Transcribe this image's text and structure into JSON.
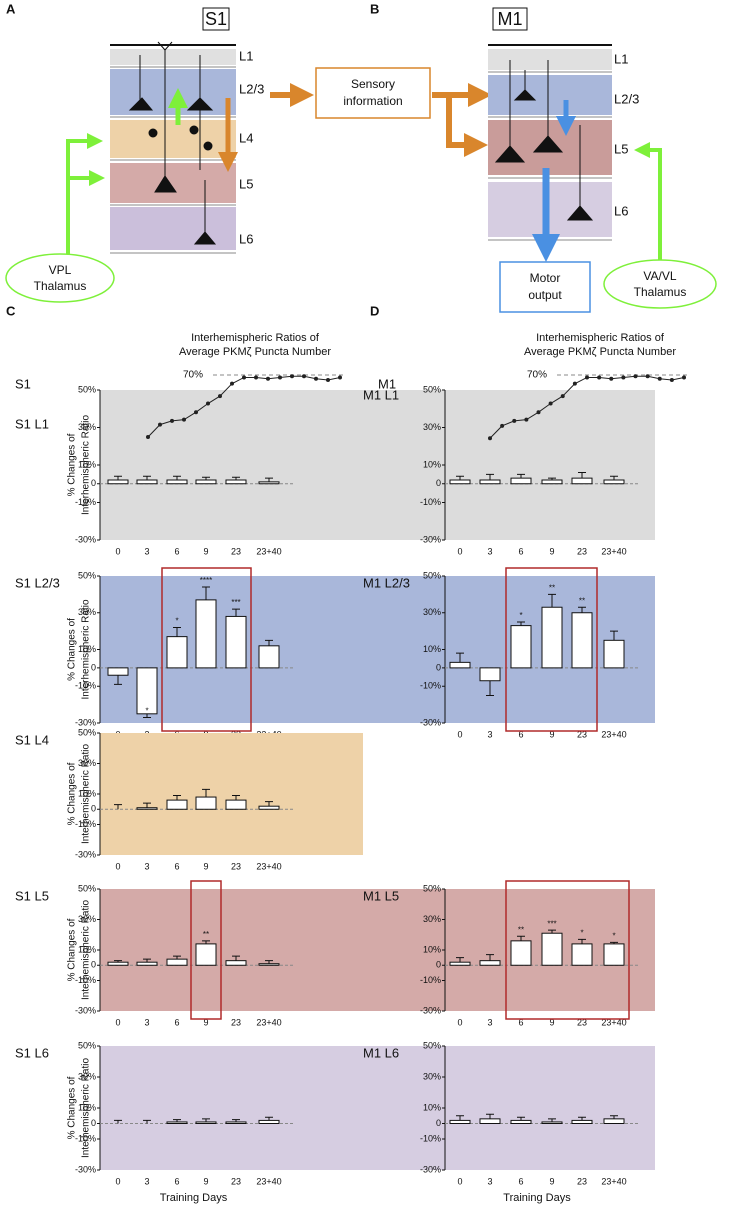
{
  "diagrams": {
    "A": {
      "letter": "A",
      "title": "S1",
      "layers": [
        "L1",
        "L2/3",
        "L4",
        "L5",
        "L6"
      ],
      "relay": [
        "Sensory",
        "information"
      ],
      "thalamus": [
        "VPL",
        "Thalamus"
      ]
    },
    "B": {
      "letter": "B",
      "title": "M1",
      "layers": [
        "L1",
        "L2/3",
        "L5",
        "L6"
      ],
      "output": [
        "Motor",
        "output"
      ],
      "thalamus": [
        "VA/VL",
        "Thalamus"
      ]
    }
  },
  "panels": {
    "C": {
      "letter": "C",
      "title": [
        "Interhemispheric Ratios of",
        "Average PKMζ Puncta Number"
      ],
      "area": "S1"
    },
    "D": {
      "letter": "D",
      "title": [
        "Interhemispheric Ratios of",
        "Average PKMζ Puncta Number"
      ],
      "area": "M1"
    }
  },
  "chart_data": [
    {
      "type": "bar",
      "label": "S1 L1",
      "background": "#dcdcdc",
      "categories": [
        "0",
        "3",
        "6",
        "9",
        "23",
        "23+40"
      ],
      "values": [
        2,
        2,
        2,
        2,
        2,
        1
      ],
      "errors": [
        2,
        2,
        2,
        1.5,
        1.5,
        2
      ],
      "ylim": [
        -30,
        50
      ],
      "yticks": [
        {
          "value": 50,
          "label": "50%"
        },
        {
          "value": 30,
          "label": "30%"
        },
        {
          "value": 10,
          "label": "10%"
        },
        0,
        {
          "value": -10,
          "label": "-10%"
        },
        {
          "value": -30,
          "label": "-30%"
        }
      ],
      "ylabel": [
        "% Changes of",
        "Interhemispheric Ratio"
      ]
    },
    {
      "type": "bar",
      "label": "S1 L2/3",
      "background": "#a9b7da",
      "categories": [
        "0",
        "3",
        "6",
        "9",
        "23",
        "23+40"
      ],
      "values": [
        -4,
        -25,
        17,
        37,
        28,
        12
      ],
      "errors": [
        5,
        2,
        5,
        7,
        4,
        3
      ],
      "significance": [
        null,
        "*",
        "*",
        "****",
        "***",
        null
      ],
      "highlight": [
        2,
        4
      ],
      "ylim": [
        -30,
        50
      ],
      "yticks": [
        {
          "value": 50,
          "label": "50%"
        },
        {
          "value": 30,
          "label": "30%"
        },
        {
          "value": 10,
          "label": "10%"
        },
        0,
        {
          "value": -10,
          "label": "-10%"
        },
        {
          "value": -30,
          "label": "-30%"
        }
      ],
      "ylabel": [
        "% Changes of",
        "Interhemispheric Ratio"
      ]
    },
    {
      "type": "bar",
      "label": "S1 L4",
      "background": "#eed2a8",
      "categories": [
        "0",
        "3",
        "6",
        "9",
        "23",
        "23+40"
      ],
      "values": [
        0,
        1,
        6,
        8,
        6,
        2
      ],
      "errors": [
        3,
        3,
        3,
        5,
        3,
        3
      ],
      "ylim": [
        -30,
        50
      ],
      "yticks": [
        {
          "value": 50,
          "label": "50%"
        },
        {
          "value": 30,
          "label": "30%"
        },
        {
          "value": 10,
          "label": "10%"
        },
        0,
        {
          "value": -10,
          "label": "-10%"
        },
        {
          "value": -30,
          "label": "-30%"
        }
      ],
      "ylabel": [
        "% Changes of",
        "Interhemispheric Ratio"
      ]
    },
    {
      "type": "bar",
      "label": "S1 L5",
      "background": "#d4aaa8",
      "categories": [
        "0",
        "3",
        "6",
        "9",
        "23",
        "23+40"
      ],
      "values": [
        2,
        2,
        4,
        14,
        3,
        1
      ],
      "errors": [
        1,
        2,
        2,
        2,
        3,
        2
      ],
      "significance": [
        null,
        null,
        null,
        "**",
        null,
        null
      ],
      "highlight": [
        3,
        3
      ],
      "ylim": [
        -30,
        50
      ],
      "yticks": [
        {
          "value": 50,
          "label": "50%"
        },
        {
          "value": 30,
          "label": "30%"
        },
        {
          "value": 10,
          "label": "10%"
        },
        0,
        {
          "value": -10,
          "label": "-10%"
        },
        {
          "value": -30,
          "label": "-30%"
        }
      ],
      "ylabel": [
        "% Changes of",
        "Interhemispheric Ratio"
      ]
    },
    {
      "type": "bar",
      "label": "S1 L6",
      "background": "#d6cde1",
      "categories": [
        "0",
        "3",
        "6",
        "9",
        "23",
        "23+40"
      ],
      "values": [
        0,
        0,
        1,
        1,
        1,
        2
      ],
      "errors": [
        2,
        2,
        1.5,
        2,
        1.5,
        2
      ],
      "ylim": [
        -30,
        50
      ],
      "yticks": [
        {
          "value": 50,
          "label": "50%"
        },
        {
          "value": 30,
          "label": "30%"
        },
        {
          "value": 10,
          "label": "10%"
        },
        0,
        {
          "value": -10,
          "label": "-10%"
        },
        {
          "value": -30,
          "label": "-30%"
        }
      ],
      "ylabel": [
        "% Changes of",
        "Interhemispheric Ratio"
      ],
      "xlabel": "Training Days"
    },
    {
      "type": "bar",
      "label": "M1 L1",
      "background": "#dcdcdc",
      "categories": [
        "0",
        "3",
        "6",
        "9",
        "23",
        "23+40"
      ],
      "values": [
        2,
        2,
        3,
        2,
        3,
        2
      ],
      "errors": [
        2,
        3,
        2,
        1,
        3,
        2
      ],
      "ylim": [
        -30,
        50
      ],
      "yticks": [
        {
          "value": 50,
          "label": "50%"
        },
        {
          "value": 30,
          "label": "30%"
        },
        {
          "value": 10,
          "label": "10%"
        },
        0,
        {
          "value": -10,
          "label": "-10%"
        },
        {
          "value": -30,
          "label": "-30%"
        }
      ]
    },
    {
      "type": "bar",
      "label": "M1 L2/3",
      "background": "#a9b7da",
      "categories": [
        "0",
        "3",
        "6",
        "9",
        "23",
        "23+40"
      ],
      "values": [
        3,
        -7,
        23,
        33,
        30,
        15
      ],
      "errors": [
        5,
        8,
        2,
        7,
        3,
        5
      ],
      "significance": [
        null,
        null,
        "*",
        "**",
        "**",
        null
      ],
      "highlight": [
        2,
        4
      ],
      "ylim": [
        -30,
        50
      ],
      "yticks": [
        {
          "value": 50,
          "label": "50%"
        },
        {
          "value": 30,
          "label": "30%"
        },
        {
          "value": 10,
          "label": "10%"
        },
        0,
        {
          "value": -10,
          "label": "-10%"
        },
        {
          "value": -30,
          "label": "-30%"
        }
      ]
    },
    {
      "type": "bar",
      "label": "M1 L5",
      "background": "#d4aaa8",
      "categories": [
        "0",
        "3",
        "6",
        "9",
        "23",
        "23+40"
      ],
      "values": [
        2,
        3,
        16,
        21,
        14,
        14
      ],
      "errors": [
        3,
        4,
        3,
        2,
        3,
        1
      ],
      "significance": [
        null,
        null,
        "**",
        "***",
        "*",
        "*"
      ],
      "highlight": [
        2,
        5
      ],
      "ylim": [
        -30,
        50
      ],
      "yticks": [
        {
          "value": 50,
          "label": "50%"
        },
        {
          "value": 30,
          "label": "30%"
        },
        {
          "value": 10,
          "label": "10%"
        },
        0,
        {
          "value": -10,
          "label": "-10%"
        },
        {
          "value": -30,
          "label": "-30%"
        }
      ]
    },
    {
      "type": "bar",
      "label": "M1 L6",
      "background": "#d6cde1",
      "categories": [
        "0",
        "3",
        "6",
        "9",
        "23",
        "23+40"
      ],
      "values": [
        2,
        3,
        2,
        1,
        2,
        3
      ],
      "errors": [
        3,
        3,
        2,
        2,
        2,
        2
      ],
      "ylim": [
        -30,
        50
      ],
      "yticks": [
        {
          "value": 50,
          "label": "50%"
        },
        {
          "value": 30,
          "label": "30%"
        },
        {
          "value": 10,
          "label": "10%"
        },
        0,
        {
          "value": -10,
          "label": "-10%"
        },
        {
          "value": -30,
          "label": "-30%"
        }
      ],
      "xlabel": "Training Days"
    },
    {
      "type": "line",
      "color": "#222222",
      "values": [
        20,
        30,
        33,
        34,
        40,
        47,
        53,
        63,
        68,
        68,
        67,
        68,
        69,
        69,
        67,
        66,
        68
      ],
      "reference": {
        "value": 70,
        "label": "70%"
      }
    },
    {
      "type": "line",
      "color": "#222222",
      "values": [
        19,
        29,
        33,
        34,
        40,
        47,
        53,
        63,
        68,
        68,
        67,
        68,
        69,
        69,
        67,
        66,
        68
      ],
      "reference": {
        "value": 70,
        "label": "70%"
      }
    }
  ]
}
